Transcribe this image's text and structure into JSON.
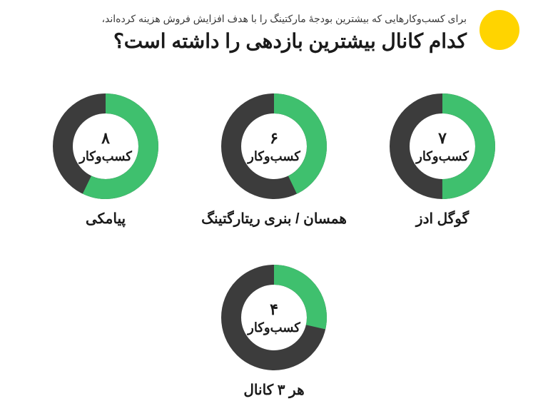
{
  "header": {
    "subtitle": "برای کسب‌وکارهایی که بیشترین بودجهٔ مارکتینگ را با هدف افزایش فروش هزینه کرده‌اند،",
    "title": "کدام کانال بیشترین بازدهی را داشته است؟",
    "accent_color": "#ffd400"
  },
  "donut": {
    "radius": 60,
    "stroke_width": 28,
    "track_color": "#3c3c3c",
    "fill_color": "#3fc06e",
    "inner_bg": "#ffffff",
    "max": 14
  },
  "unit_label": "کسب‌وکار",
  "items": [
    {
      "value": 8,
      "display": "۸",
      "label": "پیامکی"
    },
    {
      "value": 6,
      "display": "۶",
      "label": "همسان / بنری ریتارگتینگ"
    },
    {
      "value": 7,
      "display": "۷",
      "label": "گوگل ادز"
    },
    {
      "value": 4,
      "display": "۴",
      "label": "هر ۳ کانال"
    }
  ]
}
